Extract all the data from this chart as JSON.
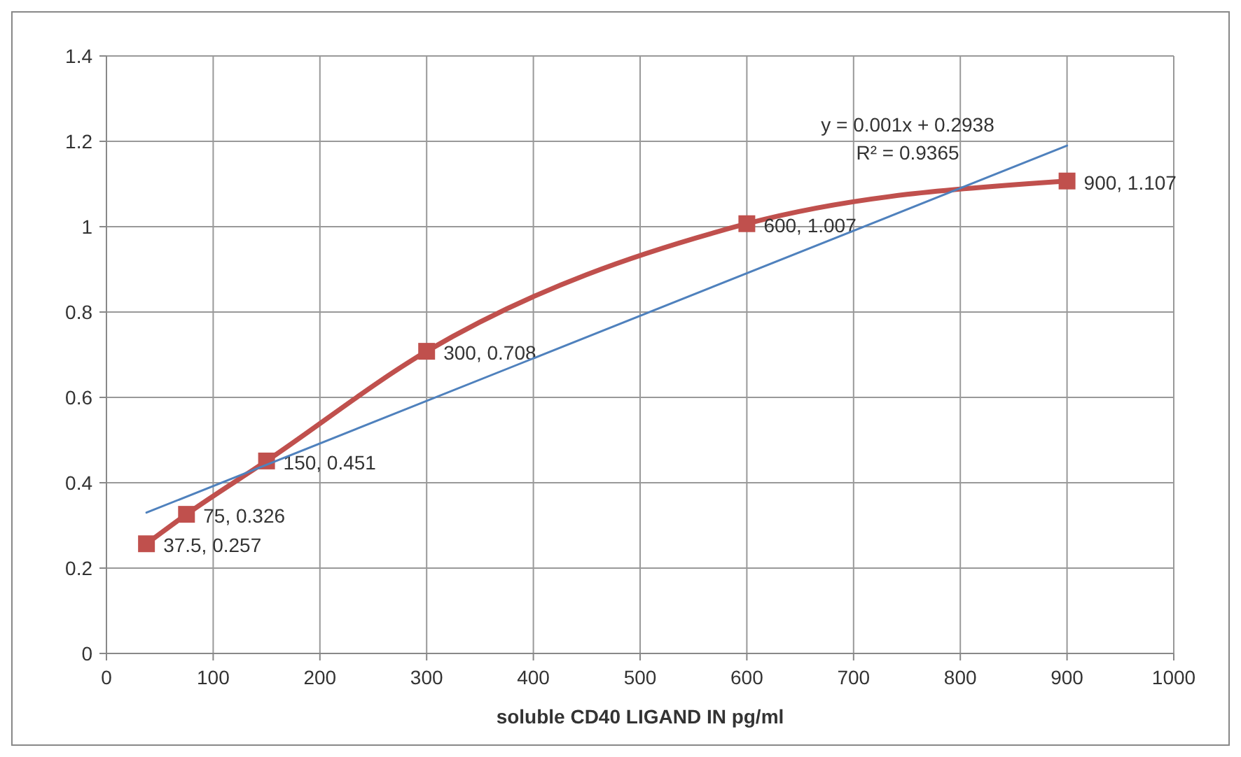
{
  "chart_data": {
    "type": "line",
    "xlabel": "soluble CD40 LIGAND IN pg/ml",
    "xlim": [
      0,
      1000
    ],
    "xticks": [
      0,
      100,
      200,
      300,
      400,
      500,
      600,
      700,
      800,
      900,
      1000
    ],
    "ylim": [
      0,
      1.4
    ],
    "yticks": [
      0,
      0.2,
      0.4,
      0.6,
      0.8,
      1,
      1.2,
      1.4
    ],
    "grid": true,
    "series": [
      {
        "color": "#c0504d",
        "x": [
          37.5,
          75,
          150,
          300,
          600,
          900
        ],
        "values": [
          0.257,
          0.326,
          0.451,
          0.708,
          1.007,
          1.107
        ],
        "marker": "square",
        "value_labels": [
          "37.5, 0.257",
          "75, 0.326",
          "150, 0.451",
          "300, 0.708",
          "600, 1.007",
          "900, 1.107"
        ]
      },
      {
        "color": "#4f81bd",
        "x": [
          37.5,
          900
        ],
        "values": [
          0.33,
          1.19
        ],
        "marker": "none"
      }
    ],
    "annotations": [
      "y = 0.001x + 0.2938",
      "R² = 0.9365"
    ]
  }
}
